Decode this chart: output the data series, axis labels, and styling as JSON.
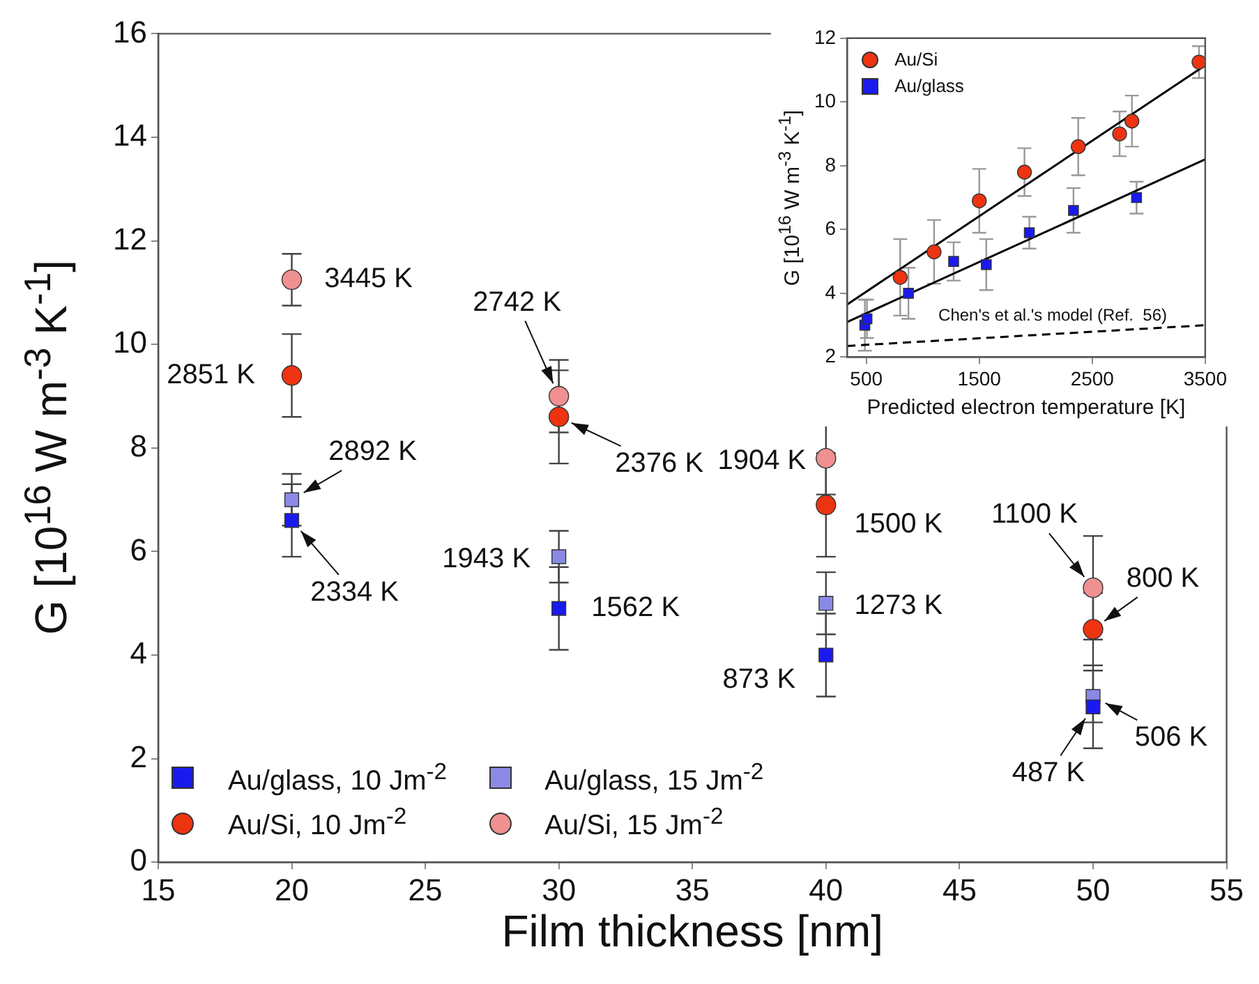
{
  "chart_data": [
    {
      "type": "scatter",
      "xlabel": "Film thickness [nm]",
      "ylabel": "G [10$^{16}$ W m$^{-3}$ K$^{-1}$]",
      "xlim": [
        15,
        55
      ],
      "xticks": [
        15,
        20,
        25,
        30,
        35,
        40,
        45,
        50,
        55
      ],
      "ylim": [
        0,
        16
      ],
      "yticks": [
        0,
        2,
        4,
        6,
        8,
        10,
        12,
        14,
        16
      ],
      "grid": false,
      "legend": "bottom left",
      "series": [
        {
          "name": "Au/glass, 10 Jm$^{-2}$",
          "color": "#1a1aee",
          "marker": "square",
          "x": [
            20,
            30,
            40,
            50
          ],
          "values": [
            6.6,
            4.9,
            4.0,
            3.0
          ],
          "errors": [
            0.7,
            0.8,
            0.8,
            0.8
          ]
        },
        {
          "name": "Au/glass, 15 Jm$^{-2}$",
          "color": "#8a8ae6",
          "marker": "square",
          "x": [
            20,
            30,
            40,
            50
          ],
          "values": [
            7.0,
            5.9,
            5.0,
            3.2
          ],
          "errors": [
            0.5,
            0.5,
            0.6,
            0.5
          ]
        },
        {
          "name": "Au/Si, 10 Jm$^{-2}$",
          "color": "#ee3311",
          "marker": "circle",
          "x": [
            20,
            30,
            40,
            50
          ],
          "values": [
            9.4,
            8.6,
            6.9,
            4.5
          ],
          "errors": [
            0.8,
            0.9,
            1.0,
            0.7
          ]
        },
        {
          "name": "Au/Si, 15 Jm$^{-2}$",
          "color": "#f09090",
          "marker": "circle",
          "x": [
            20,
            30,
            40,
            50
          ],
          "values": [
            11.25,
            9.0,
            7.8,
            5.3
          ],
          "errors": [
            0.5,
            0.7,
            0.7,
            1.0
          ]
        }
      ],
      "annotations": [
        {
          "text": "3445 K",
          "x": 20,
          "y": 11.25
        },
        {
          "text": "2851 K",
          "x": 20,
          "y": 9.4
        },
        {
          "text": "2892 K",
          "x": 20,
          "y": 7.0
        },
        {
          "text": "2334 K",
          "x": 20,
          "y": 6.6
        },
        {
          "text": "2742 K",
          "x": 30,
          "y": 9.0
        },
        {
          "text": "2376 K",
          "x": 30,
          "y": 8.6
        },
        {
          "text": "1943 K",
          "x": 30,
          "y": 5.9
        },
        {
          "text": "1562 K",
          "x": 30,
          "y": 4.9
        },
        {
          "text": "1904 K",
          "x": 40,
          "y": 7.8
        },
        {
          "text": "1500 K",
          "x": 40,
          "y": 6.9
        },
        {
          "text": "1273 K",
          "x": 40,
          "y": 5.0
        },
        {
          "text": "873 K",
          "x": 40,
          "y": 4.0
        },
        {
          "text": "1100 K",
          "x": 50,
          "y": 5.3
        },
        {
          "text": "800 K",
          "x": 50,
          "y": 4.5
        },
        {
          "text": "506 K",
          "x": 50,
          "y": 3.2
        },
        {
          "text": "487 K",
          "x": 50,
          "y": 3.0
        }
      ]
    },
    {
      "type": "scatter",
      "xlabel": "Predicted electron temperature [K]",
      "ylabel": "G [10$^{16}$ W m$^{-3}$ K$^{-1}$]",
      "xlim": [
        330,
        3500
      ],
      "xticks": [
        500,
        1500,
        2500,
        3500
      ],
      "ylim": [
        2,
        12
      ],
      "yticks": [
        2,
        4,
        6,
        8,
        10,
        12
      ],
      "grid": false,
      "legend": "top left",
      "series": [
        {
          "name": "Au/Si",
          "color": "#ee3311",
          "marker": "circle",
          "x": [
            800,
            1100,
            1500,
            1900,
            2376,
            2742,
            2851,
            3445
          ],
          "values": [
            4.5,
            5.3,
            6.9,
            7.8,
            8.6,
            9.0,
            9.4,
            11.25
          ],
          "errors": [
            1.2,
            1.0,
            1.0,
            0.75,
            0.9,
            0.7,
            0.8,
            0.5
          ]
        },
        {
          "name": "Au/glass",
          "color": "#1a1aee",
          "marker": "square",
          "x": [
            487,
            506,
            873,
            1273,
            1562,
            1943,
            2334,
            2892
          ],
          "values": [
            3.0,
            3.2,
            4.0,
            5.0,
            4.9,
            5.9,
            6.6,
            7.0
          ],
          "errors": [
            0.8,
            0.6,
            0.8,
            0.6,
            0.8,
            0.5,
            0.7,
            0.5
          ]
        },
        {
          "type": "line",
          "color": "#000000",
          "line_style": "solid",
          "x": [
            330,
            3500
          ],
          "values": [
            3.65,
            11.15
          ]
        },
        {
          "type": "line",
          "color": "#000000",
          "line_style": "solid",
          "x": [
            330,
            3500
          ],
          "values": [
            3.1,
            8.2
          ]
        },
        {
          "type": "line",
          "color": "#000000",
          "line_style": "dashed",
          "x": [
            330,
            3500
          ],
          "values": [
            2.35,
            3.0
          ]
        }
      ],
      "annotations": [
        {
          "text": "Chen's et al.'s model (Ref.  56)",
          "x": 2150,
          "y": 2.85
        }
      ]
    }
  ]
}
